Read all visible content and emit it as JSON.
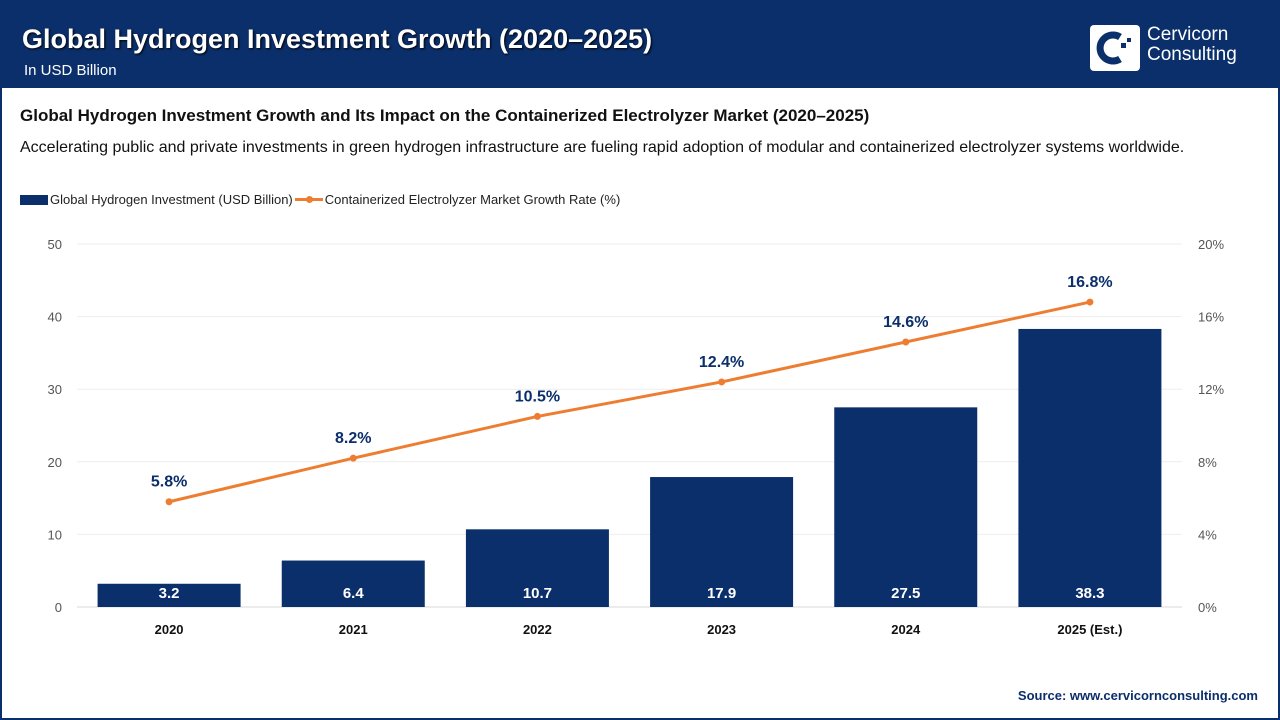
{
  "header": {
    "title": "Global Hydrogen Investment Growth (2020–2025)",
    "subtitle": "In USD Billion",
    "logo_line1": "Cervicorn",
    "logo_line2": "Consulting"
  },
  "heading": "Global Hydrogen Investment Growth and Its Impact on the Containerized Electrolyzer Market (2020–2025)",
  "description": "Accelerating public and private investments in green hydrogen infrastructure are fueling rapid adoption of modular and containerized electrolyzer systems worldwide.",
  "source": "Source: www.cervicornconsulting.com",
  "chart_data": {
    "type": "bar",
    "categories": [
      "2020",
      "2021",
      "2022",
      "2023",
      "2024",
      "2025 (Est.)"
    ],
    "series": [
      {
        "name": "Global Hydrogen Investment (USD Billion)",
        "type": "bar",
        "axis": "left",
        "color": "#0b2f6b",
        "values": [
          3.2,
          6.4,
          10.7,
          17.9,
          27.5,
          38.3
        ],
        "labels": [
          "3.2",
          "6.4",
          "10.7",
          "17.9",
          "27.5",
          "38.3"
        ]
      },
      {
        "name": "Containerized Electrolyzer Market Growth Rate (%)",
        "type": "line",
        "axis": "right",
        "color": "#ed7d31",
        "values": [
          5.8,
          8.2,
          10.5,
          12.4,
          14.6,
          16.8
        ],
        "labels": [
          "5.8%",
          "8.2%",
          "10.5%",
          "12.4%",
          "14.6%",
          "16.8%"
        ]
      }
    ],
    "y_left": {
      "range": [
        0,
        50
      ],
      "ticks": [
        "0",
        "10",
        "20",
        "30",
        "40",
        "50"
      ]
    },
    "y_right": {
      "range": [
        0,
        20
      ],
      "ticks": [
        "0%",
        "4%",
        "8%",
        "12%",
        "16%",
        "20%"
      ]
    },
    "grid": true,
    "legend": "top-left"
  }
}
